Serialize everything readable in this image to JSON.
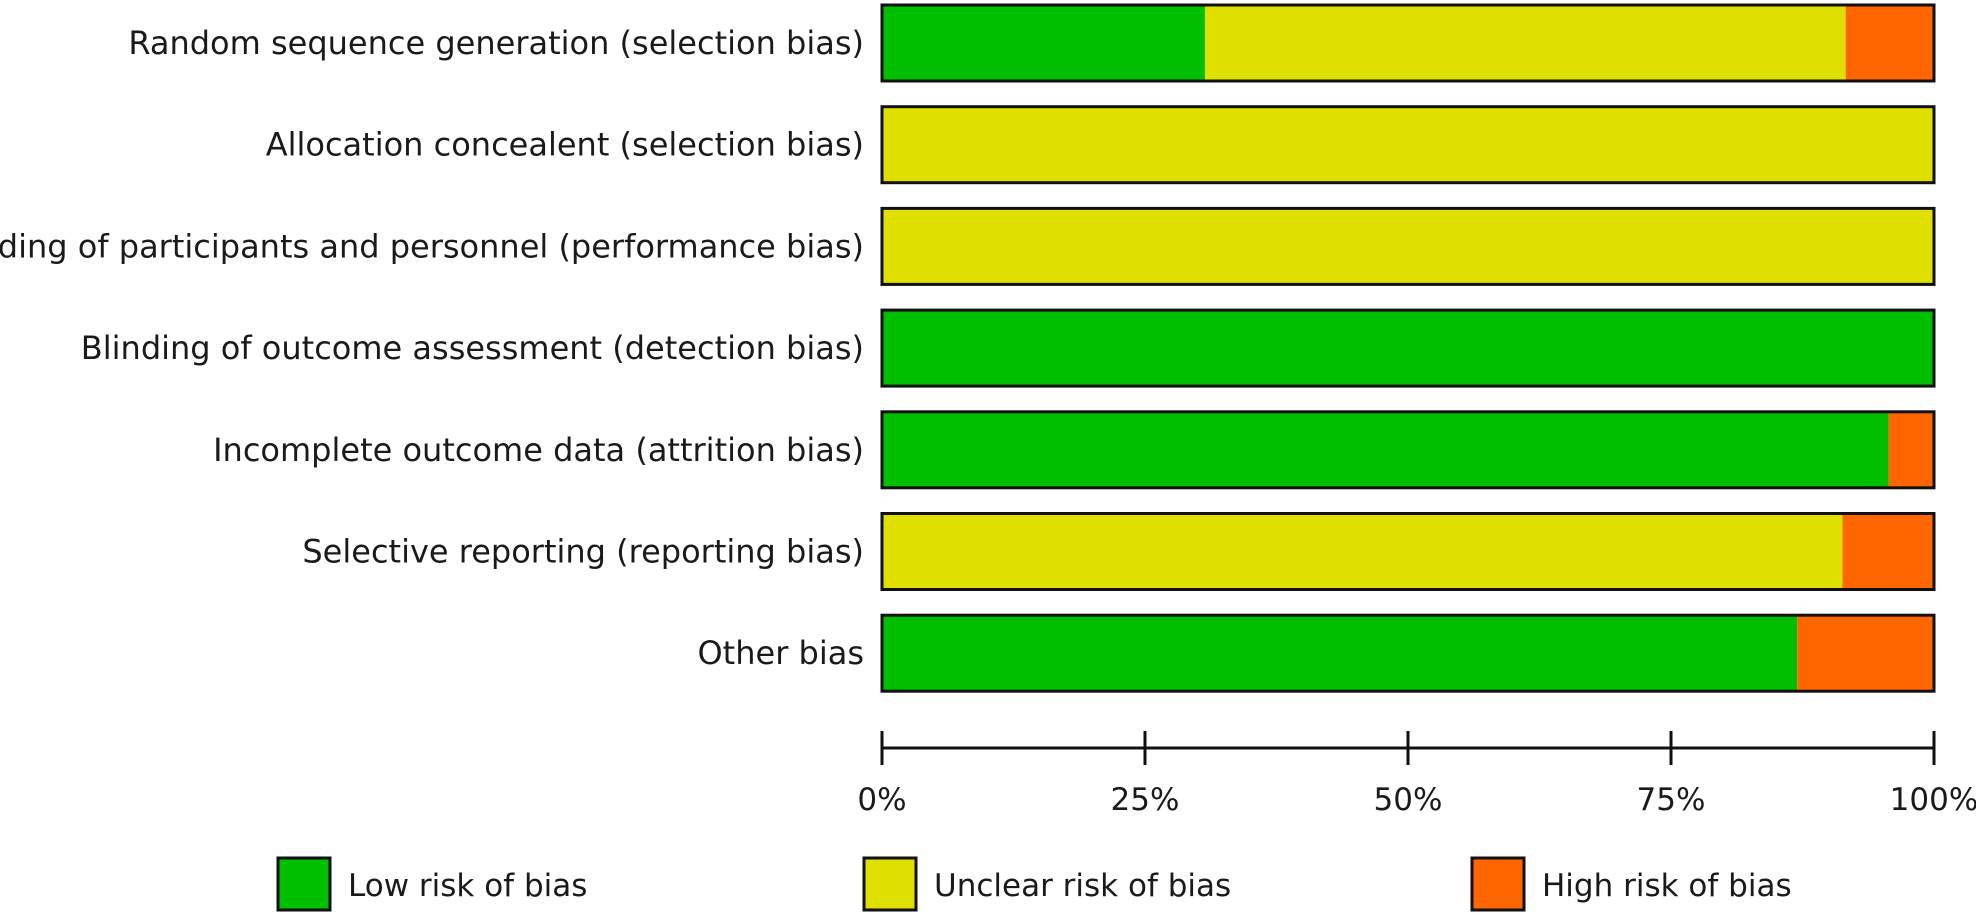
{
  "chart_data": {
    "type": "bar",
    "orientation": "horizontal",
    "stacked": true,
    "categories": [
      "Random sequence generation (selection bias)",
      "Allocation concealent (selection bias)",
      "Blinding of participants and personnel (performance bias)",
      "Blinding of outcome assessment (detection bias)",
      "Incomplete outcome data (attrition bias)",
      "Selective reporting (reporting bias)",
      "Other bias"
    ],
    "series": [
      {
        "name": "Low risk of bias",
        "color": "#00bf00",
        "values": [
          30.7,
          0,
          0,
          100,
          95.7,
          0,
          87.0
        ]
      },
      {
        "name": "Unclear risk of bias",
        "color": "#dfe000",
        "values": [
          60.9,
          100,
          100,
          0,
          0,
          91.3,
          0
        ]
      },
      {
        "name": "High risk of bias",
        "color": "#ff6600",
        "values": [
          8.4,
          0,
          0,
          0,
          4.3,
          8.7,
          13.0
        ]
      }
    ],
    "xlim": [
      0,
      100
    ],
    "xticks": [
      "0%",
      "25%",
      "50%",
      "75%",
      "100%"
    ],
    "grid": false,
    "legend": "bottom"
  }
}
